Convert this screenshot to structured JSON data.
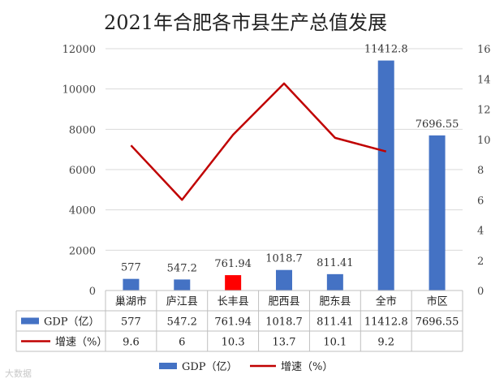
{
  "chart_data": {
    "type": "bar",
    "title": "2021年合肥各市县生产总值发展",
    "categories": [
      "巢湖市",
      "庐江县",
      "长丰县",
      "肥西县",
      "肥东县",
      "全市",
      "市区"
    ],
    "series": [
      {
        "name": "GDP（亿）",
        "type": "bar",
        "axis": "left",
        "color": "#4472C4",
        "highlight_color": "#FF0000",
        "highlight_index": 2,
        "values": [
          577,
          547.2,
          761.94,
          1018.7,
          811.41,
          11412.8,
          7696.55
        ],
        "labels": [
          "577",
          "547.2",
          "761.94",
          "1018.7",
          "811.41",
          "11412.8",
          "7696.55"
        ]
      },
      {
        "name": "增速（%）",
        "type": "line",
        "axis": "right",
        "color": "#C00000",
        "values": [
          9.6,
          6,
          10.3,
          13.7,
          10.1,
          9.2,
          null
        ],
        "labels": [
          "9.6",
          "6",
          "10.3",
          "13.7",
          "10.1",
          "9.2",
          ""
        ]
      }
    ],
    "y_left": {
      "ylim": [
        0,
        12000
      ],
      "ticks": [
        "0",
        "2000",
        "4000",
        "6000",
        "8000",
        "10000",
        "12000"
      ]
    },
    "y_right": {
      "ylim": [
        0,
        16
      ],
      "ticks": [
        "0",
        "2",
        "4",
        "6",
        "8",
        "10",
        "12",
        "14",
        "16"
      ]
    },
    "grid": true,
    "legend_position": "bottom",
    "data_table": true
  },
  "watermark": "大数据"
}
